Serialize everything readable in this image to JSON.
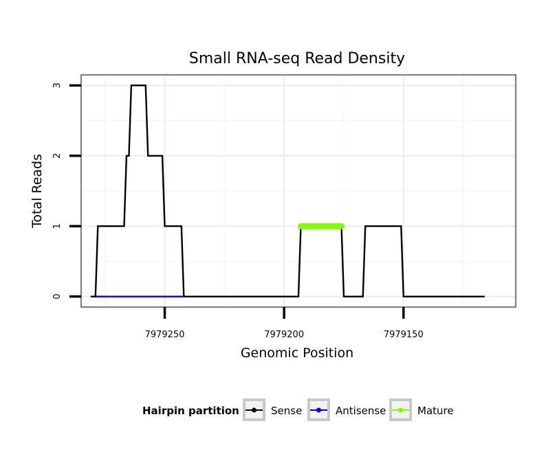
{
  "chart_data": {
    "type": "line",
    "title": "Small RNA-seq Read Density",
    "xlabel": "Genomic Position",
    "ylabel": "Total Reads",
    "x_reversed": true,
    "xlim": [
      7979285,
      7979103
    ],
    "ylim": [
      -0.15,
      3.15
    ],
    "x_ticks": [
      7979250,
      7979200,
      7979150
    ],
    "x_tick_labels": [
      "7979250",
      "7979200",
      "7979150"
    ],
    "y_ticks": [
      0,
      1,
      2,
      3
    ],
    "y_tick_labels": [
      "0",
      "1",
      "2",
      "3"
    ],
    "grid": true,
    "legend": {
      "title": "Hairpin partition",
      "position": "bottom",
      "entries": [
        "Sense",
        "Antisense",
        "Mature"
      ]
    },
    "series": [
      {
        "name": "Sense",
        "color": "#000000",
        "x": [
          7979281,
          7979279,
          7979278,
          7979267,
          7979266,
          7979265,
          7979264,
          7979258,
          7979257,
          7979251,
          7979250,
          7979243,
          7979242,
          7979194,
          7979193,
          7979176,
          7979175,
          7979167,
          7979166,
          7979151,
          7979150,
          7979116
        ],
        "values": [
          0,
          0,
          1,
          1,
          2,
          2,
          3,
          3,
          2,
          2,
          1,
          1,
          0,
          0,
          1,
          1,
          0,
          0,
          1,
          1,
          0,
          0
        ]
      },
      {
        "name": "Antisense",
        "color": "#0000ff",
        "x": [
          7979279,
          7979242
        ],
        "values": [
          0,
          0
        ]
      },
      {
        "name": "Mature",
        "color": "#7fff00",
        "x": [
          7979193,
          7979176
        ],
        "values": [
          1,
          1
        ]
      }
    ]
  }
}
